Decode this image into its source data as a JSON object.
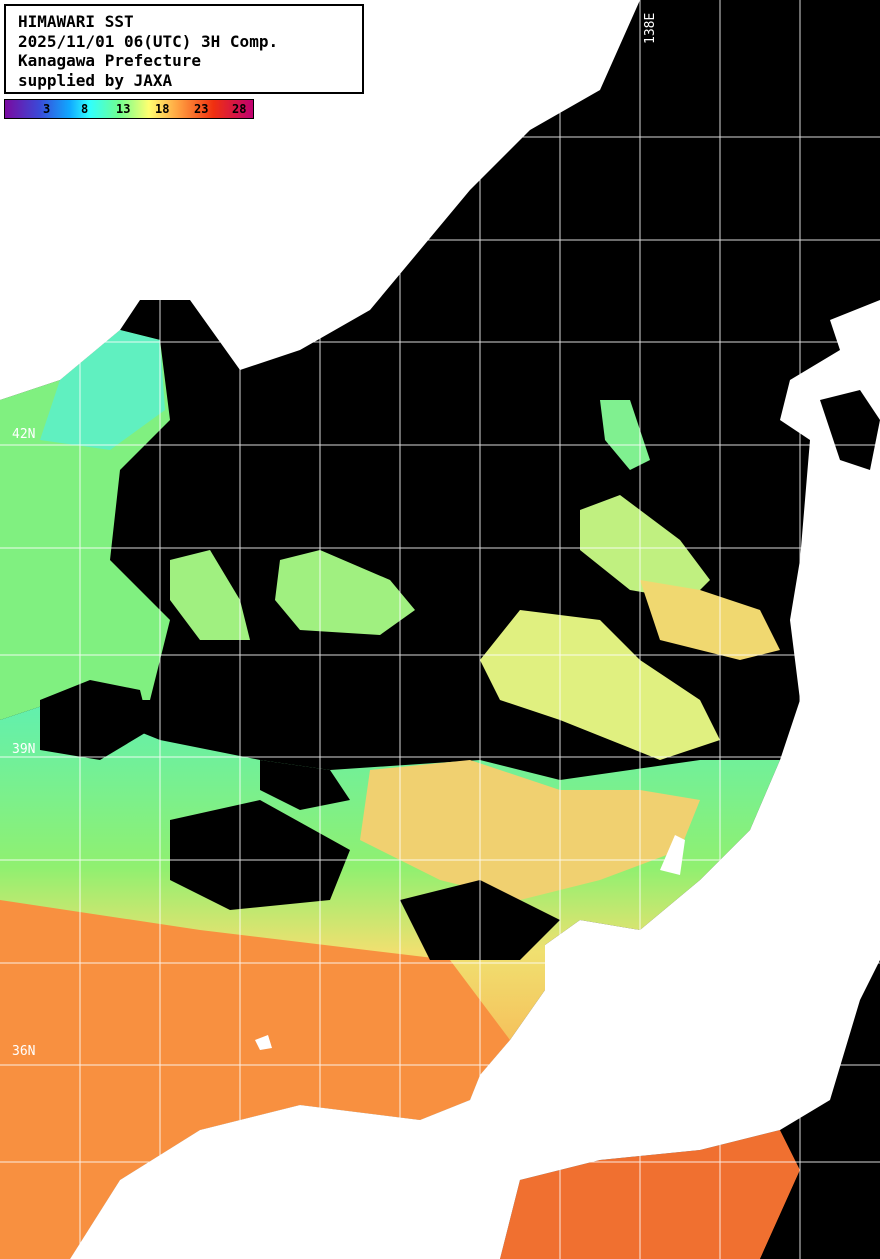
{
  "header": {
    "line1": "HIMAWARI SST",
    "line2": "2025/11/01 06(UTC) 3H Comp.",
    "line3": "Kanagawa Prefecture",
    "line4": "supplied by JAXA"
  },
  "colorbar": {
    "ticks": [
      "3",
      "8",
      "13",
      "18",
      "23",
      "28"
    ],
    "colors": [
      "#7a0aa0",
      "#3a4ad8",
      "#10a8ff",
      "#30ffff",
      "#70ff90",
      "#ffff70",
      "#ffa040",
      "#f03010",
      "#c00070"
    ]
  },
  "grid_labels": {
    "lat_42": "42N",
    "lat_39": "39N",
    "lat_36": "36N",
    "lon_138": "138E"
  },
  "colors": {
    "land": "#ffffff",
    "no_data": "#000000",
    "grid": "#ffffff"
  }
}
